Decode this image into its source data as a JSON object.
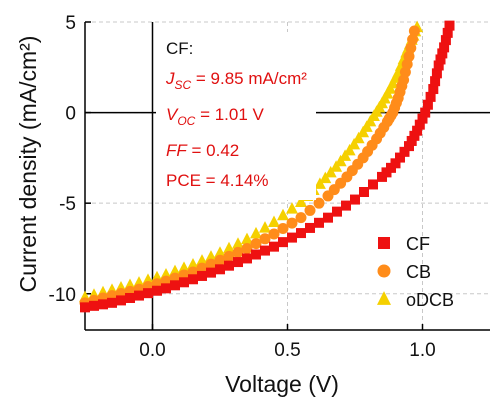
{
  "chart_data": {
    "type": "scatter",
    "xlabel": "Voltage (V)",
    "ylabel": "Current density (mA/cm²)",
    "xlim": [
      -0.25,
      1.25
    ],
    "ylim": [
      -12,
      5
    ],
    "xticks": [
      {
        "v": 0.0,
        "label": "0.0"
      },
      {
        "v": 0.5,
        "label": "0.5"
      },
      {
        "v": 1.0,
        "label": "1.0"
      }
    ],
    "yticks": [
      {
        "v": 5,
        "label": "5"
      },
      {
        "v": 0,
        "label": "0"
      },
      {
        "v": -5,
        "label": "-5"
      },
      {
        "v": -10,
        "label": "-10"
      }
    ],
    "grid": true,
    "legend_position": "bottom-right",
    "annotation": {
      "header": "CF:",
      "jsc": {
        "sym": "J",
        "sub": "SC",
        "rest": " = 9.85 mA/cm²"
      },
      "voc": {
        "sym": "V",
        "sub": "OC",
        "rest": " = 1.01 V"
      },
      "ff": {
        "sym": "FF",
        "rest": " = 0.42"
      },
      "pce": "PCE = 4.14%"
    },
    "series": [
      {
        "name": "CF",
        "color": "#ee1111",
        "marker": "square",
        "x": [
          -0.25,
          -0.15,
          -0.05,
          0.05,
          0.15,
          0.25,
          0.35,
          0.45,
          0.55,
          0.65,
          0.75,
          0.85,
          0.9,
          0.95,
          0.98,
          1.01,
          1.04,
          1.06,
          1.08,
          1.1
        ],
        "y": [
          -10.75,
          -10.5,
          -10.1,
          -9.7,
          -9.2,
          -8.65,
          -8.05,
          -7.4,
          -6.65,
          -5.8,
          -4.8,
          -3.55,
          -2.8,
          -1.85,
          -1.0,
          0.0,
          1.3,
          2.6,
          3.6,
          4.8
        ]
      },
      {
        "name": "CB",
        "color": "#ff8c1a",
        "marker": "circle",
        "x": [
          -0.25,
          -0.15,
          -0.05,
          0.05,
          0.15,
          0.25,
          0.35,
          0.45,
          0.55,
          0.65,
          0.72,
          0.78,
          0.83,
          0.87,
          0.89,
          0.91,
          0.93,
          0.95,
          0.97
        ],
        "y": [
          -10.5,
          -10.1,
          -9.75,
          -9.3,
          -8.8,
          -8.15,
          -7.5,
          -6.7,
          -5.8,
          -4.6,
          -3.55,
          -2.5,
          -1.45,
          -0.5,
          0.0,
          0.8,
          1.8,
          3.1,
          4.5
        ]
      },
      {
        "name": "oDCB",
        "color": "#f5d000",
        "marker": "triangle",
        "x": [
          -0.25,
          -0.15,
          -0.05,
          0.05,
          0.15,
          0.25,
          0.35,
          0.45,
          0.55,
          0.62,
          0.68,
          0.73,
          0.78,
          0.82,
          0.85,
          0.88,
          0.91,
          0.94,
          0.96,
          0.98
        ],
        "y": [
          -10.2,
          -9.8,
          -9.4,
          -8.95,
          -8.4,
          -7.75,
          -7.0,
          -6.05,
          -4.95,
          -3.95,
          -3.0,
          -2.1,
          -1.1,
          -0.2,
          0.5,
          1.3,
          2.2,
          3.3,
          4.0,
          4.7
        ]
      }
    ]
  }
}
